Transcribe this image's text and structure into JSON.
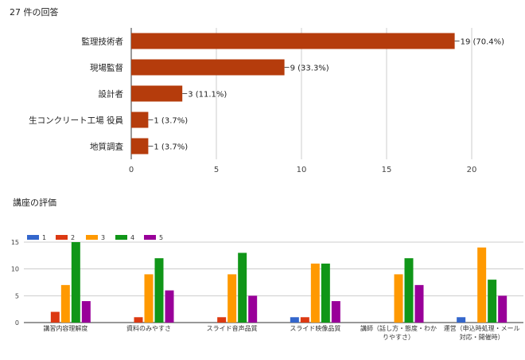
{
  "header": {
    "response_count": "27 件の回答"
  },
  "section2": {
    "title": "講座の評価"
  },
  "chart_data": [
    {
      "type": "bar",
      "orientation": "horizontal",
      "categories": [
        "監理技術者",
        "現場監督",
        "設計者",
        "生コンクリート工場 役員",
        "地質調査"
      ],
      "values": [
        19,
        9,
        3,
        1,
        1
      ],
      "data_labels": [
        "19 (70.4%)",
        "9 (33.3%)",
        "3 (11.1%)",
        "1 (3.7%)",
        "1 (3.7%)"
      ],
      "xlim": [
        0,
        20
      ],
      "xticks": [
        0,
        5,
        10,
        15,
        20
      ],
      "grid": true,
      "color": "#b53c0c"
    },
    {
      "type": "bar",
      "categories": [
        "講習内容理解度",
        "資料のみやすさ",
        "スライド音声品質",
        "スライド映像品質",
        "講師（話し方・態度・わかりやすさ）",
        "運営（申込時処理・メール対応・開催時）"
      ],
      "category_labels": [
        [
          "講習内容理解度"
        ],
        [
          "資料のみやすさ"
        ],
        [
          "スライド音声品質"
        ],
        [
          "スライド映像品質"
        ],
        [
          "講師（話し方・態度・わか",
          "りやすさ）"
        ],
        [
          "運営（申込時処理・メール",
          "対応・開催時）"
        ]
      ],
      "series": [
        {
          "name": "1",
          "color": "#3366cc",
          "values": [
            0,
            0,
            0,
            1,
            0,
            1
          ]
        },
        {
          "name": "2",
          "color": "#dc3912",
          "values": [
            2,
            1,
            1,
            1,
            0,
            0
          ]
        },
        {
          "name": "3",
          "color": "#ff9900",
          "values": [
            7,
            9,
            9,
            11,
            9,
            14
          ]
        },
        {
          "name": "4",
          "color": "#109618",
          "values": [
            15,
            12,
            13,
            11,
            12,
            8
          ]
        },
        {
          "name": "5",
          "color": "#990099",
          "values": [
            4,
            6,
            5,
            4,
            7,
            5
          ]
        }
      ],
      "ylim": [
        0,
        15
      ],
      "yticks": [
        0,
        5,
        10,
        15
      ],
      "legend": "top-left",
      "grid": true
    }
  ]
}
